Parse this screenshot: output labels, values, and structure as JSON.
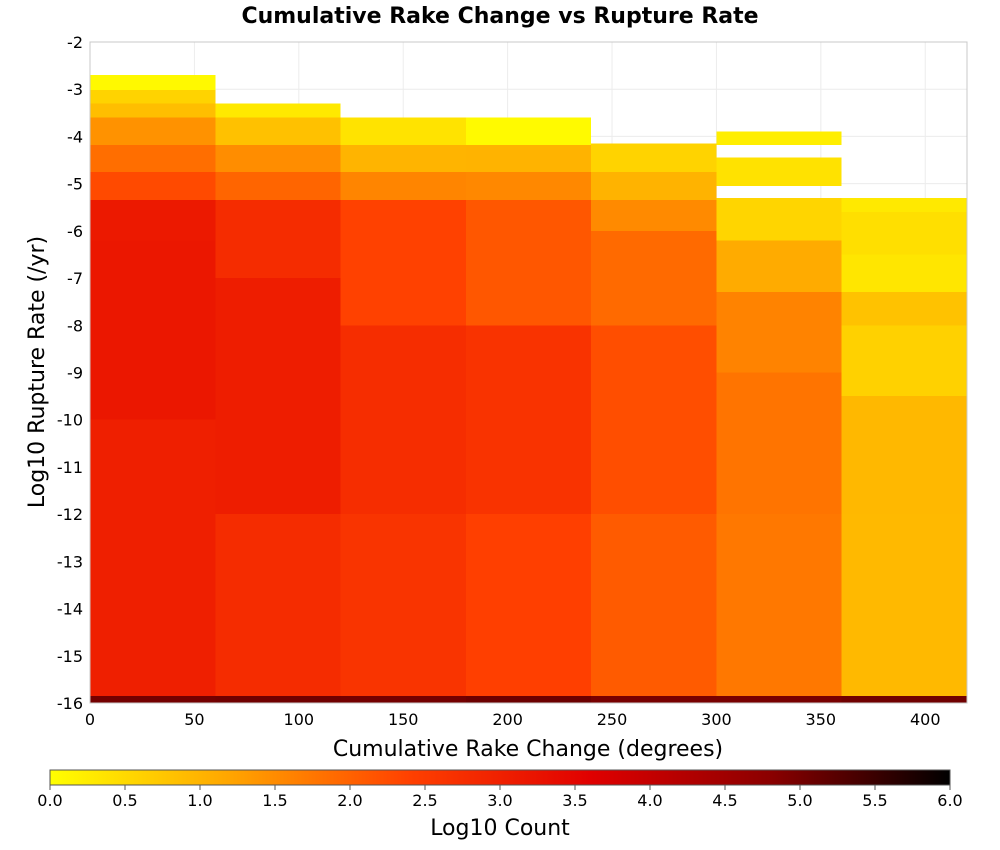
{
  "chart_data": {
    "type": "heatmap",
    "title": "Cumulative Rake Change vs Rupture Rate",
    "xlabel": "Cumulative Rake Change (degrees)",
    "ylabel": "Log10 Rupture Rate (/yr)",
    "xlim": [
      0,
      420
    ],
    "ylim": [
      -16,
      -2
    ],
    "xticks": [
      "0",
      "50",
      "100",
      "150",
      "200",
      "250",
      "300",
      "350",
      "400"
    ],
    "yticks": [
      "-2",
      "-3",
      "-4",
      "-5",
      "-6",
      "-7",
      "-8",
      "-9",
      "-10",
      "-11",
      "-12",
      "-13",
      "-14",
      "-15",
      "-16"
    ],
    "grid": true,
    "bin_width_x": 60,
    "bin_height_y": 0.2875,
    "columns": [
      {
        "x_start": 0,
        "x_end": 60,
        "segments": [
          {
            "y_top": -2.7,
            "y_bottom": -3.02,
            "value": 0.15
          },
          {
            "y_top": -3.02,
            "y_bottom": -3.3,
            "value": 0.55
          },
          {
            "y_top": -3.3,
            "y_bottom": -3.6,
            "value": 0.9
          },
          {
            "y_top": -3.6,
            "y_bottom": -4.18,
            "value": 1.35
          },
          {
            "y_top": -4.18,
            "y_bottom": -4.75,
            "value": 1.85
          },
          {
            "y_top": -4.75,
            "y_bottom": -5.35,
            "value": 2.35
          },
          {
            "y_top": -5.35,
            "y_bottom": -6.2,
            "value": 3.1
          },
          {
            "y_top": -6.2,
            "y_bottom": -10.0,
            "value": 3.2
          },
          {
            "y_top": -10.0,
            "y_bottom": -15.85,
            "value": 2.95
          },
          {
            "y_top": -15.85,
            "y_bottom": -16.0,
            "value": 5.0
          }
        ]
      },
      {
        "x_start": 60,
        "x_end": 120,
        "segments": [
          {
            "y_top": -3.3,
            "y_bottom": -3.6,
            "value": 0.3
          },
          {
            "y_top": -3.6,
            "y_bottom": -4.18,
            "value": 0.9
          },
          {
            "y_top": -4.18,
            "y_bottom": -4.75,
            "value": 1.45
          },
          {
            "y_top": -4.75,
            "y_bottom": -5.35,
            "value": 2.0
          },
          {
            "y_top": -5.35,
            "y_bottom": -7.0,
            "value": 2.7
          },
          {
            "y_top": -7.0,
            "y_bottom": -12.0,
            "value": 3.05
          },
          {
            "y_top": -12.0,
            "y_bottom": -15.85,
            "value": 2.85
          },
          {
            "y_top": -15.85,
            "y_bottom": -16.0,
            "value": 5.0
          }
        ]
      },
      {
        "x_start": 120,
        "x_end": 180,
        "segments": [
          {
            "y_top": -3.6,
            "y_bottom": -4.18,
            "value": 0.3
          },
          {
            "y_top": -4.18,
            "y_bottom": -4.75,
            "value": 1.0
          },
          {
            "y_top": -4.75,
            "y_bottom": -5.35,
            "value": 1.65
          },
          {
            "y_top": -5.35,
            "y_bottom": -8.0,
            "value": 2.35
          },
          {
            "y_top": -8.0,
            "y_bottom": -12.0,
            "value": 2.8
          },
          {
            "y_top": -12.0,
            "y_bottom": -15.85,
            "value": 2.55
          },
          {
            "y_top": -15.85,
            "y_bottom": -16.0,
            "value": 5.0
          }
        ]
      },
      {
        "x_start": 180,
        "x_end": 240,
        "segments": [
          {
            "y_top": -3.6,
            "y_bottom": -4.18,
            "value": 0.1
          },
          {
            "y_top": -4.18,
            "y_bottom": -4.75,
            "value": 0.95
          },
          {
            "y_top": -4.75,
            "y_bottom": -5.35,
            "value": 1.55
          },
          {
            "y_top": -5.35,
            "y_bottom": -8.0,
            "value": 2.2
          },
          {
            "y_top": -8.0,
            "y_bottom": -12.0,
            "value": 2.6
          },
          {
            "y_top": -12.0,
            "y_bottom": -15.85,
            "value": 2.45
          },
          {
            "y_top": -15.85,
            "y_bottom": -16.0,
            "value": 5.0
          }
        ]
      },
      {
        "x_start": 240,
        "x_end": 300,
        "segments": [
          {
            "y_top": -4.15,
            "y_bottom": -4.75,
            "value": 0.55
          },
          {
            "y_top": -4.75,
            "y_bottom": -5.35,
            "value": 1.05
          },
          {
            "y_top": -5.35,
            "y_bottom": -6.0,
            "value": 1.45
          },
          {
            "y_top": -6.0,
            "y_bottom": -8.0,
            "value": 1.9
          },
          {
            "y_top": -8.0,
            "y_bottom": -12.0,
            "value": 2.3
          },
          {
            "y_top": -12.0,
            "y_bottom": -15.85,
            "value": 2.05
          },
          {
            "y_top": -15.85,
            "y_bottom": -16.0,
            "value": 5.0
          }
        ]
      },
      {
        "x_start": 300,
        "x_end": 360,
        "segments": [
          {
            "y_top": -3.9,
            "y_bottom": -4.18,
            "value": 0.3
          },
          {
            "y_top": -4.45,
            "y_bottom": -5.05,
            "value": 0.35
          },
          {
            "y_top": -5.3,
            "y_bottom": -6.2,
            "value": 0.6
          },
          {
            "y_top": -6.2,
            "y_bottom": -7.3,
            "value": 1.05
          },
          {
            "y_top": -7.3,
            "y_bottom": -9.0,
            "value": 1.6
          },
          {
            "y_top": -9.0,
            "y_bottom": -12.0,
            "value": 1.85
          },
          {
            "y_top": -12.0,
            "y_bottom": -15.85,
            "value": 1.7
          },
          {
            "y_top": -15.85,
            "y_bottom": -16.0,
            "value": 5.0
          }
        ]
      },
      {
        "x_start": 360,
        "x_end": 420,
        "segments": [
          {
            "y_top": -5.3,
            "y_bottom": -5.6,
            "value": 0.3
          },
          {
            "y_top": -5.6,
            "y_bottom": -6.5,
            "value": 0.5
          },
          {
            "y_top": -6.5,
            "y_bottom": -7.3,
            "value": 0.3
          },
          {
            "y_top": -7.3,
            "y_bottom": -8.0,
            "value": 0.85
          },
          {
            "y_top": -8.0,
            "y_bottom": -9.5,
            "value": 0.55
          },
          {
            "y_top": -9.5,
            "y_bottom": -12.0,
            "value": 0.95
          },
          {
            "y_top": -12.0,
            "y_bottom": -15.85,
            "value": 1.0
          },
          {
            "y_top": -15.85,
            "y_bottom": -16.0,
            "value": 5.0
          }
        ]
      }
    ],
    "colorbar": {
      "label": "Log10 Count",
      "min": 0.0,
      "max": 6.0,
      "ticks": [
        "0.0",
        "0.5",
        "1.0",
        "1.5",
        "2.0",
        "2.5",
        "3.0",
        "3.5",
        "4.0",
        "4.5",
        "5.0",
        "5.5",
        "6.0"
      ],
      "colormap": [
        "#ffff00",
        "#ffa500",
        "#ff4000",
        "#e00000",
        "#8b0000",
        "#000000"
      ]
    }
  }
}
